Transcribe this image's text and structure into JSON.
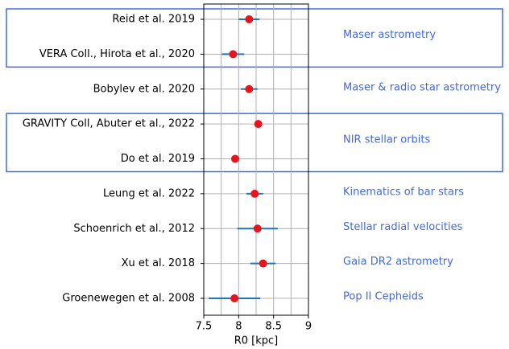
{
  "chart_data": {
    "type": "errorbar",
    "xlabel": "R0 [kpc]",
    "categories": [
      "Reid et al. 2019",
      "VERA Coll., Hirota et al., 2020",
      "Bobylev et al. 2020",
      "GRAVITY Coll, Abuter et al., 2022",
      "Do et al. 2019",
      "Leung et al. 2022",
      "Schoenrich et al., 2012",
      "Xu et al. 2018",
      "Groenewegen et al. 2008"
    ],
    "values": [
      8.15,
      7.92,
      8.15,
      8.28,
      7.95,
      8.23,
      8.27,
      8.35,
      7.94
    ],
    "errors": [
      0.15,
      0.16,
      0.12,
      0.01,
      0.05,
      0.12,
      0.29,
      0.18,
      0.37
    ],
    "marker_color": "#e8141c",
    "errorbar_color": "#1f77b4",
    "xlim": [
      7.5,
      9.0
    ],
    "xticks": [
      7.5,
      8.0,
      8.5,
      9.0
    ],
    "xminor": [
      7.75,
      8.25,
      8.75
    ],
    "grid": true,
    "group_color": "#4169e1",
    "groups": [
      {
        "label": "Maser astrometry",
        "rows": [
          0,
          1
        ],
        "boxed": true
      },
      {
        "label": "Maser & radio star astrometry",
        "rows": [
          2
        ],
        "boxed": false
      },
      {
        "label": "NIR stellar orbits",
        "rows": [
          3,
          4
        ],
        "boxed": true
      },
      {
        "label": "Kinematics of bar stars",
        "rows": [
          5
        ],
        "boxed": false
      },
      {
        "label": "Stellar radial velocities",
        "rows": [
          6
        ],
        "boxed": false
      },
      {
        "label": "Gaia DR2 astrometry",
        "rows": [
          7
        ],
        "boxed": false
      },
      {
        "label": "Pop II Cepheids",
        "rows": [
          8
        ],
        "boxed": false
      }
    ]
  }
}
